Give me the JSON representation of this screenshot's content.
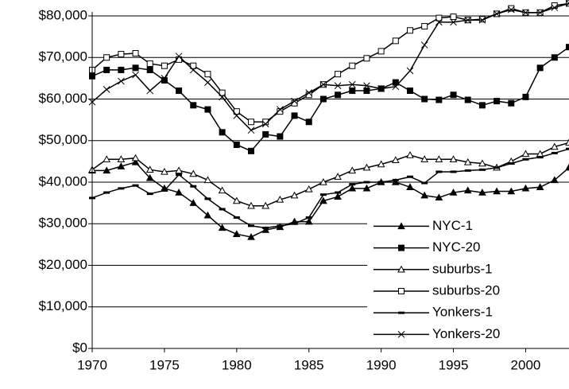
{
  "chart_data": {
    "type": "line",
    "x": [
      1970,
      1971,
      1972,
      1973,
      1974,
      1975,
      1976,
      1977,
      1978,
      1979,
      1980,
      1981,
      1982,
      1983,
      1984,
      1985,
      1986,
      1987,
      1988,
      1989,
      1990,
      1991,
      1992,
      1993,
      1994,
      1995,
      1996,
      1997,
      1998,
      1999,
      2000,
      2001,
      2002,
      2003
    ],
    "series": [
      {
        "name": "NYC-1",
        "color": "#000000",
        "marker": "triangle-filled",
        "values": [
          42800,
          42800,
          43800,
          44800,
          41000,
          38500,
          37500,
          35000,
          32000,
          29000,
          27500,
          26800,
          28500,
          29200,
          30500,
          30500,
          35500,
          36500,
          38500,
          38500,
          40000,
          40000,
          38800,
          36800,
          36300,
          37500,
          38000,
          37500,
          37800,
          37800,
          38500,
          38800,
          40500,
          43500
        ]
      },
      {
        "name": "NYC-20",
        "color": "#000000",
        "marker": "square-filled",
        "values": [
          65500,
          67000,
          67000,
          67500,
          67000,
          64500,
          62000,
          58500,
          57500,
          52000,
          49000,
          47500,
          51500,
          51000,
          56000,
          54500,
          60000,
          61000,
          62000,
          62000,
          62500,
          64000,
          62000,
          60000,
          59800,
          61000,
          59800,
          58500,
          59500,
          59000,
          60500,
          67500,
          70000,
          72500
        ]
      },
      {
        "name": "suburbs-1",
        "color": "#000000",
        "marker": "triangle-open",
        "values": [
          43000,
          45500,
          45500,
          45800,
          43000,
          42500,
          42800,
          42000,
          40500,
          38000,
          35500,
          34300,
          34300,
          35800,
          36800,
          38300,
          40000,
          41300,
          42800,
          43500,
          44300,
          45300,
          46500,
          45500,
          45500,
          45500,
          44800,
          44500,
          43500,
          45000,
          46800,
          46800,
          48500,
          49500
        ]
      },
      {
        "name": "suburbs-20",
        "color": "#000000",
        "marker": "square-open",
        "values": [
          67000,
          70000,
          70800,
          71000,
          68500,
          68000,
          69500,
          68000,
          66000,
          61500,
          57000,
          54500,
          54500,
          57000,
          59000,
          61000,
          63500,
          66000,
          68000,
          69800,
          71500,
          74000,
          76500,
          77500,
          79500,
          79800,
          79000,
          79200,
          80500,
          81800,
          80800,
          80800,
          82500,
          83000
        ]
      },
      {
        "name": "Yonkers-1",
        "color": "#000000",
        "marker": "dash",
        "values": [
          36200,
          37500,
          38500,
          39200,
          37200,
          38000,
          41800,
          39000,
          36000,
          33500,
          31500,
          29500,
          29000,
          29500,
          30000,
          31500,
          37000,
          37500,
          39500,
          40000,
          40000,
          40500,
          41300,
          39800,
          42500,
          42500,
          42800,
          43000,
          43500,
          44500,
          45500,
          46000,
          47000,
          48000
        ]
      },
      {
        "name": "Yonkers-20",
        "color": "#000000",
        "marker": "cross",
        "values": [
          59300,
          62300,
          64300,
          65800,
          62000,
          65000,
          70300,
          67000,
          64000,
          60500,
          56000,
          52500,
          54000,
          57500,
          59500,
          61500,
          63500,
          63200,
          63500,
          63200,
          62500,
          63000,
          66800,
          73000,
          78500,
          78500,
          79000,
          79000,
          80500,
          81500,
          80800,
          80800,
          82000,
          83000
        ]
      }
    ],
    "xlim": [
      1970,
      2003
    ],
    "xticks": [
      1970,
      1975,
      1980,
      1985,
      1990,
      1995,
      2000
    ],
    "ylim": [
      0,
      80000
    ],
    "yticks": [
      {
        "value": 0,
        "label": "$0"
      },
      {
        "value": 10000,
        "label": "$10,000"
      },
      {
        "value": 20000,
        "label": "$20,000"
      },
      {
        "value": 30000,
        "label": "$30,000"
      },
      {
        "value": 40000,
        "label": "$40,000"
      },
      {
        "value": 50000,
        "label": "$50,000"
      },
      {
        "value": 60000,
        "label": "$60,000"
      },
      {
        "value": 70000,
        "label": "$70,000"
      },
      {
        "value": 80000,
        "label": "$80,000"
      }
    ],
    "grid": true,
    "legend": "lower-right"
  }
}
